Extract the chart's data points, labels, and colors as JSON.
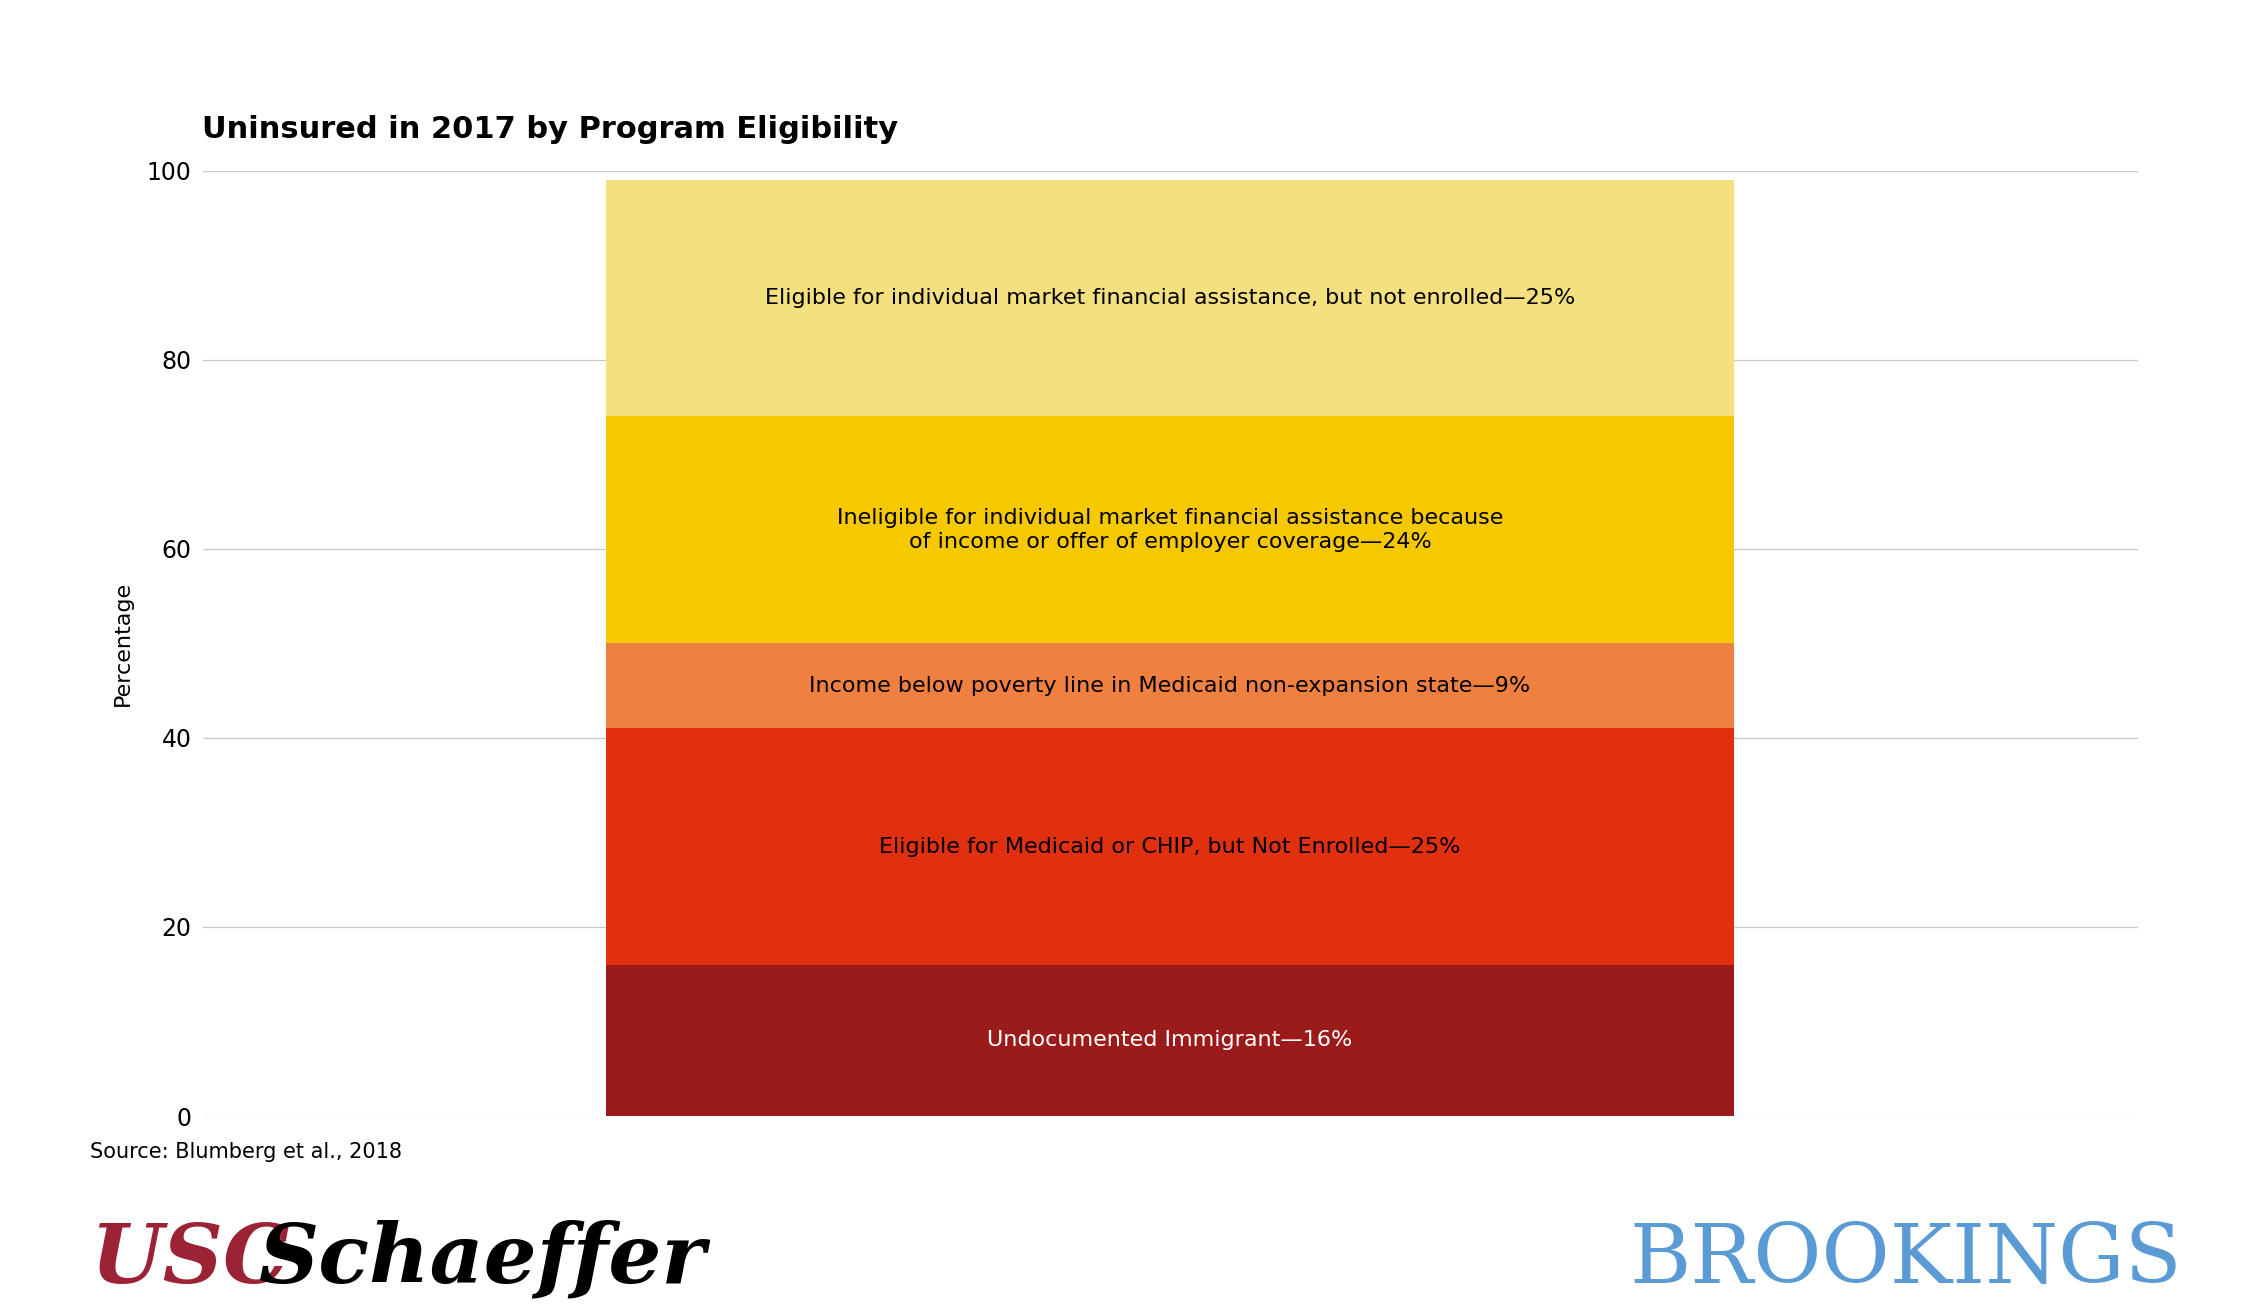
{
  "title": "Uninsured in 2017 by Program Eligibility",
  "ylabel": "Percentage",
  "source": "Source: Blumberg et al., 2018",
  "segments": [
    {
      "label": "Undocumented Immigrant—16%",
      "value": 16,
      "color": "#9B1B1B",
      "text_color": "#FFFFFF"
    },
    {
      "label": "Eligible for Medicaid or CHIP, but Not Enrolled—25%",
      "value": 25,
      "color": "#E03010",
      "text_color": "#000000"
    },
    {
      "label": "Income below poverty line in Medicaid non-expansion state—9%",
      "value": 9,
      "color": "#F08040",
      "text_color": "#000000"
    },
    {
      "label": "Ineligible for individual market financial assistance because\nof income or offer of employer coverage—24%",
      "value": 24,
      "color": "#F5C800",
      "text_color": "#000000"
    },
    {
      "label": "Eligible for individual market financial assistance, but not enrolled—25%",
      "value": 25,
      "color": "#F5E080",
      "text_color": "#000000"
    }
  ],
  "ylim": [
    0,
    100
  ],
  "yticks": [
    0,
    20,
    40,
    60,
    80,
    100
  ],
  "title_fontsize": 22,
  "label_fontsize": 16,
  "ylabel_fontsize": 16,
  "source_fontsize": 15,
  "usc_color_usc": "#9B2335",
  "usc_color_schaeffer": "#000000",
  "brookings_color": "#5B9BD5",
  "background_color": "#FFFFFF",
  "grid_color": "#C8C8C8"
}
